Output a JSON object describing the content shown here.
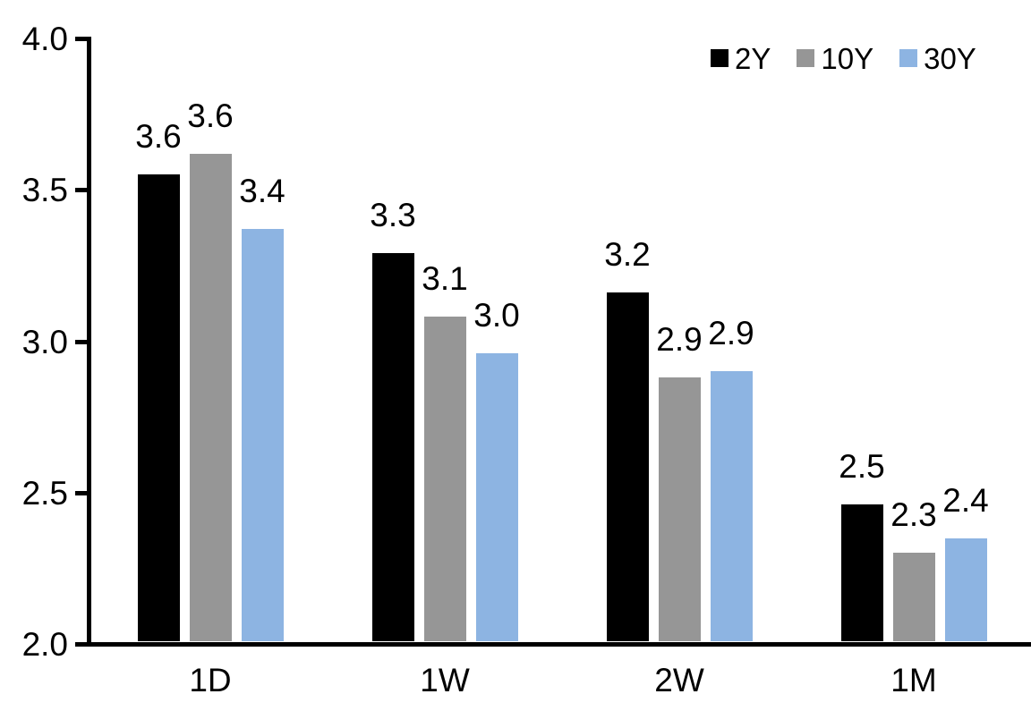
{
  "chart_data": {
    "type": "bar",
    "title": "",
    "xlabel": "",
    "ylabel": "",
    "categories": [
      "1D",
      "1W",
      "2W",
      "1M"
    ],
    "series": [
      {
        "name": "2Y",
        "color": "#000000",
        "values": [
          3.6,
          3.3,
          3.2,
          2.5
        ],
        "values_precise": [
          3.55,
          3.29,
          3.16,
          2.46
        ],
        "labels": [
          "3.6",
          "3.3",
          "3.2",
          "2.5"
        ]
      },
      {
        "name": "10Y",
        "color": "#969696",
        "values": [
          3.6,
          3.1,
          2.9,
          2.3
        ],
        "values_precise": [
          3.62,
          3.08,
          2.88,
          2.3
        ],
        "labels": [
          "3.6",
          "3.1",
          "2.9",
          "2.3"
        ]
      },
      {
        "name": "30Y",
        "color": "#8DB4E2",
        "values": [
          3.4,
          3.0,
          2.9,
          2.4
        ],
        "values_precise": [
          3.37,
          2.96,
          2.9,
          2.35
        ],
        "labels": [
          "3.4",
          "3.0",
          "2.9",
          "2.4"
        ]
      }
    ],
    "ylim": [
      2.0,
      4.0
    ],
    "yticks": [
      "2.0",
      "2.5",
      "3.0",
      "3.5",
      "4.0"
    ],
    "grid": false,
    "legend_position": "top-right",
    "legend_entries": [
      "2Y",
      "10Y",
      "30Y"
    ],
    "axis_color": "#000000",
    "text_color": "#000000",
    "background": "#FFFFFF",
    "data_labels_shown": true
  }
}
